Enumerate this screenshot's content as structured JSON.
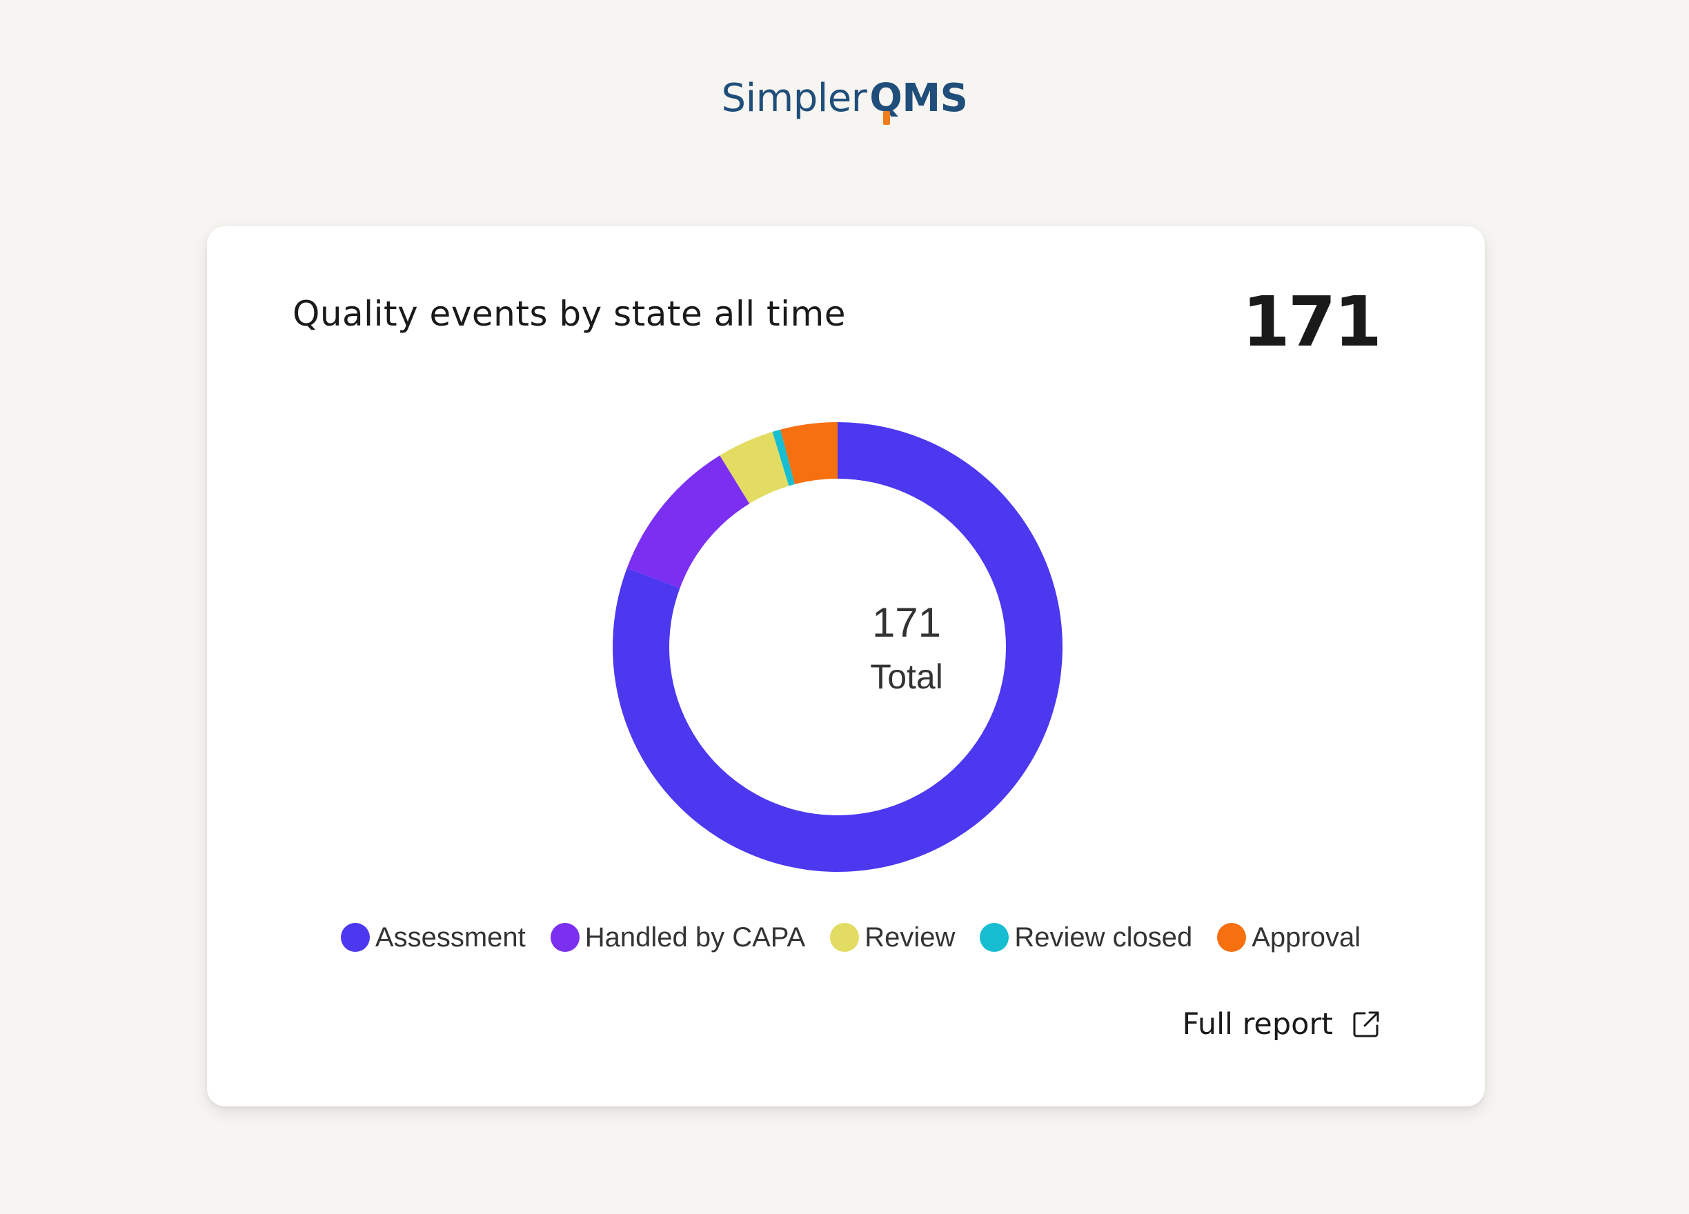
{
  "brand": {
    "name_part1": "Simpler",
    "name_part2": "QMS",
    "color": "#1f4e7a",
    "accent_color": "#f07d1a"
  },
  "card": {
    "title": "Quality events by state all time",
    "total": "171",
    "full_report_label": "Full report",
    "full_report_icon": "external-link-icon"
  },
  "chart_data": {
    "type": "pie",
    "donut": true,
    "title": "",
    "center_value": "171",
    "center_label": "Total",
    "legend_position": "bottom",
    "start_angle_deg": 0,
    "direction": "clockwise",
    "categories": [
      "Assessment",
      "Handled by CAPA",
      "Review",
      "Review closed",
      "Approval"
    ],
    "values": [
      138,
      18,
      7,
      1,
      7
    ],
    "colors": [
      "#4b38ef",
      "#7b2ff0",
      "#e3dc62",
      "#17bdd0",
      "#f7700f"
    ]
  }
}
